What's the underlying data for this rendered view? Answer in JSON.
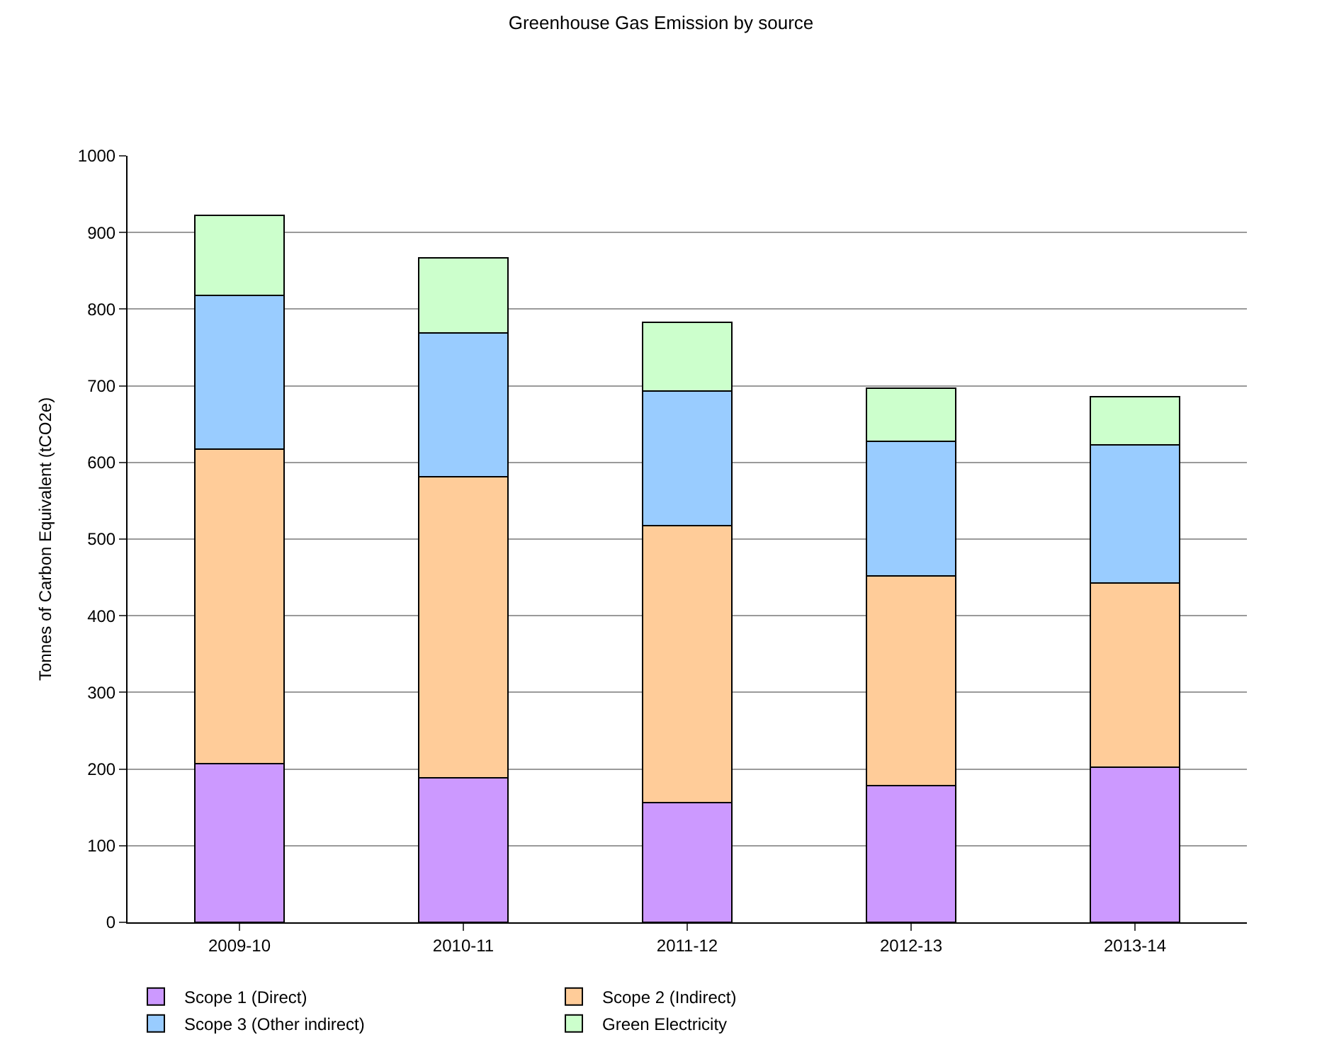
{
  "chart_data": {
    "type": "bar",
    "title": "Greenhouse Gas Emission by source",
    "ylabel": "Tonnes of Carbon Equivalent (tCO2e)",
    "categories": [
      "2009-10",
      "2010-11",
      "2011-12",
      "2012-13",
      "2013-14"
    ],
    "stacked": true,
    "series": [
      {
        "name": "Scope 1 (Direct)",
        "color": "#cc99ff",
        "values": [
          207,
          189,
          156,
          178,
          202
        ]
      },
      {
        "name": "Scope 2 (Indirect)",
        "color": "#ffcc99",
        "values": [
          410,
          392,
          362,
          274,
          241
        ]
      },
      {
        "name": "Scope 3 (Other indirect)",
        "color": "#99ccff",
        "values": [
          201,
          188,
          175,
          176,
          180
        ]
      },
      {
        "name": "Green Electricity",
        "color": "#ccffcc",
        "values": [
          104,
          98,
          90,
          69,
          63
        ]
      }
    ],
    "ylim": [
      0,
      1000
    ],
    "yticks": [
      0,
      100,
      200,
      300,
      400,
      500,
      600,
      700,
      800,
      900,
      1000
    ],
    "grid": "y",
    "legend": "bottom"
  }
}
